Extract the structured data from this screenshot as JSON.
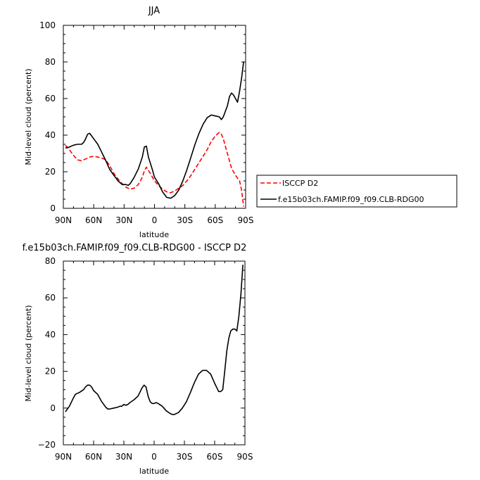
{
  "chart_data": [
    {
      "type": "line",
      "title": "JJA",
      "xlabel": "latitude",
      "ylabel": "Mid-level cloud (percent)",
      "xlim": [
        90,
        -90
      ],
      "ylim": [
        0,
        100
      ],
      "x_tick_values": [
        90,
        60,
        30,
        0,
        -30,
        -60,
        -90
      ],
      "x_tick_labels": [
        "90N",
        "60N",
        "30N",
        "0",
        "30S",
        "60S",
        "90S"
      ],
      "y_tick_values": [
        0,
        20,
        40,
        60,
        80,
        100
      ],
      "y_tick_labels": [
        "0",
        "20",
        "40",
        "60",
        "80",
        "100"
      ],
      "legend_position": "right",
      "series": [
        {
          "name": "ISCCP D2",
          "color": "#ff0000",
          "dash": "dashed",
          "x": [
            88,
            84,
            80,
            76,
            72,
            68,
            64,
            60,
            56,
            52,
            48,
            44,
            40,
            36,
            32,
            28,
            24,
            20,
            16,
            12,
            10,
            8,
            4,
            0,
            -4,
            -8,
            -12,
            -16,
            -20,
            -24,
            -28,
            -32,
            -36,
            -40,
            -44,
            -48,
            -52,
            -56,
            -60,
            -64,
            -66,
            -68,
            -72,
            -76,
            -80,
            -84,
            -86,
            -88
          ],
          "y": [
            34.5,
            32,
            29,
            26.5,
            26,
            27,
            28,
            28.5,
            28,
            27.5,
            26.5,
            23,
            19,
            16,
            13.5,
            11.5,
            10.5,
            11,
            13,
            17,
            20.5,
            22.5,
            19,
            15,
            12.5,
            10.5,
            9,
            8.5,
            9.5,
            11,
            12.5,
            15,
            18,
            21.5,
            25,
            28.5,
            32,
            36.5,
            39.5,
            41.5,
            40.5,
            38,
            30,
            22,
            18,
            15,
            10,
            1
          ]
        },
        {
          "name": "f.e15b03ch.FAMIP.f09_f09.CLB-RDG00",
          "color": "#000000",
          "dash": "solid",
          "x": [
            88,
            84,
            80,
            76,
            72,
            70,
            68,
            66,
            64,
            60,
            56,
            52,
            48,
            44,
            40,
            36,
            32,
            30,
            28,
            26,
            24,
            20,
            16,
            12,
            10,
            8,
            6,
            2,
            0,
            -4,
            -8,
            -12,
            -16,
            -20,
            -24,
            -28,
            -32,
            -36,
            -40,
            -44,
            -48,
            -52,
            -56,
            -60,
            -64,
            -66,
            -68,
            -70,
            -72,
            -74,
            -76,
            -78,
            -80,
            -82,
            -84,
            -86,
            -88
          ],
          "y": [
            33,
            33.5,
            34.5,
            35,
            35,
            36,
            38,
            40.5,
            41,
            38,
            35,
            30.5,
            26,
            21,
            18,
            15,
            13,
            13,
            13,
            12.5,
            13.5,
            17,
            21.5,
            28,
            33.5,
            34,
            28,
            21,
            17,
            13.5,
            9,
            6,
            5.5,
            7,
            10,
            15,
            21,
            28,
            35,
            41,
            46,
            49.5,
            51,
            50.5,
            50,
            48.5,
            50,
            53,
            56,
            61,
            63,
            62,
            60,
            58,
            64,
            71,
            80
          ]
        }
      ]
    },
    {
      "type": "line",
      "title": "f.e15b03ch.FAMIP.f09_f09.CLB-RDG00 - ISCCP D2",
      "xlabel": "latitude",
      "ylabel": "Mid-level cloud (percent)",
      "xlim": [
        90,
        -90
      ],
      "ylim": [
        -20,
        80
      ],
      "x_tick_values": [
        90,
        60,
        30,
        0,
        -30,
        -60,
        -90
      ],
      "x_tick_labels": [
        "90N",
        "60N",
        "30N",
        "0",
        "30S",
        "60S",
        "90S"
      ],
      "y_tick_values": [
        -20,
        0,
        20,
        40,
        60,
        80
      ],
      "y_tick_labels": [
        "−20",
        "0",
        "20",
        "40",
        "60",
        "80"
      ],
      "series": [
        {
          "color": "#000000",
          "dash": "solid",
          "x": [
            88,
            84,
            80,
            78,
            74,
            70,
            68,
            66,
            64,
            62,
            60,
            56,
            52,
            48,
            46,
            44,
            40,
            36,
            34,
            32,
            30,
            28,
            26,
            24,
            20,
            16,
            12,
            10,
            8,
            6,
            4,
            2,
            0,
            -2,
            -4,
            -8,
            -12,
            -16,
            -18,
            -20,
            -24,
            -28,
            -32,
            -36,
            -40,
            -44,
            -48,
            -52,
            -56,
            -60,
            -64,
            -66,
            -68,
            -70,
            -72,
            -74,
            -76,
            -78,
            -80,
            -82,
            -84,
            -86,
            -88
          ],
          "y": [
            -2,
            1,
            5.5,
            7.5,
            8.5,
            10,
            11.5,
            12.5,
            12.5,
            11.5,
            9.5,
            7.5,
            3.5,
            0.5,
            -0.5,
            -0.5,
            0,
            0.5,
            1,
            1,
            2,
            1.5,
            2,
            3,
            4.5,
            6.5,
            11,
            12.5,
            11.5,
            6.5,
            3.5,
            2.5,
            2.5,
            3,
            2.5,
            1,
            -1.5,
            -3,
            -3.5,
            -3.5,
            -2.5,
            0,
            3.5,
            8.5,
            14,
            18.5,
            20.5,
            20.5,
            18.5,
            13.5,
            9,
            9,
            10,
            20,
            31,
            38,
            42,
            43,
            43,
            42,
            50,
            62,
            78
          ]
        }
      ]
    }
  ]
}
